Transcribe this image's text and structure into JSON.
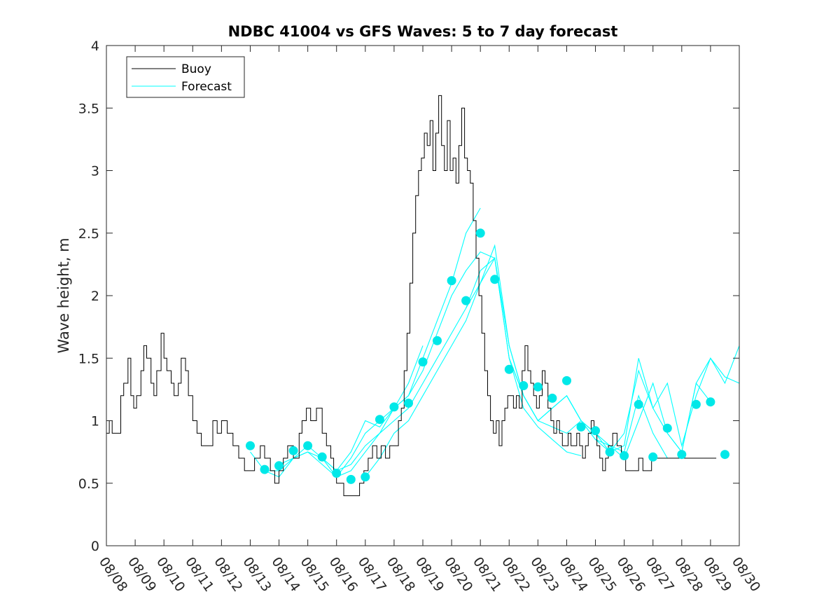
{
  "chart_data": {
    "type": "line",
    "title": "NDBC 41004 vs GFS Waves: 5 to 7 day forecast",
    "xlabel": "",
    "ylabel": "Wave height, m",
    "xlim": [
      0,
      22
    ],
    "ylim": [
      0,
      4
    ],
    "yticks": [
      0,
      0.5,
      1,
      1.5,
      2,
      2.5,
      3,
      3.5,
      4
    ],
    "ytick_labels": [
      "0",
      "0.5",
      "1",
      "1.5",
      "2",
      "2.5",
      "3",
      "3.5",
      "4"
    ],
    "xticks": [
      0,
      1,
      2,
      3,
      4,
      5,
      6,
      7,
      8,
      9,
      10,
      11,
      12,
      13,
      14,
      15,
      16,
      17,
      18,
      19,
      20,
      21,
      22
    ],
    "xtick_labels": [
      "08/08",
      "08/09",
      "08/10",
      "08/11",
      "08/12",
      "08/13",
      "08/14",
      "08/15",
      "08/16",
      "08/17",
      "08/18",
      "08/19",
      "08/20",
      "08/21",
      "08/22",
      "08/23",
      "08/24",
      "08/25",
      "08/26",
      "08/27",
      "08/28",
      "08/29",
      "08/30"
    ],
    "legend": {
      "placement": "top-left",
      "entries": [
        "Buoy",
        "Forecast"
      ]
    },
    "colors": {
      "buoy": "#000000",
      "forecast": "#00ffff",
      "markers": "#00e8e8"
    },
    "series": [
      {
        "name": "Buoy",
        "x": [
          0,
          0.1,
          0.2,
          0.35,
          0.5,
          0.6,
          0.75,
          0.85,
          0.95,
          1.05,
          1.2,
          1.3,
          1.4,
          1.55,
          1.65,
          1.75,
          1.9,
          2.0,
          2.1,
          2.25,
          2.35,
          2.5,
          2.6,
          2.75,
          2.85,
          3.0,
          3.15,
          3.3,
          3.5,
          3.7,
          3.85,
          4.0,
          4.2,
          4.4,
          4.6,
          4.8,
          5.0,
          5.15,
          5.35,
          5.5,
          5.7,
          5.85,
          6.0,
          6.15,
          6.3,
          6.5,
          6.7,
          6.8,
          6.95,
          7.1,
          7.3,
          7.5,
          7.65,
          7.8,
          7.9,
          8.0,
          8.1,
          8.25,
          8.4,
          8.6,
          8.8,
          8.95,
          9.1,
          9.25,
          9.4,
          9.55,
          9.7,
          9.85,
          10.0,
          10.15,
          10.25,
          10.35,
          10.45,
          10.55,
          10.65,
          10.75,
          10.85,
          10.95,
          11.05,
          11.15,
          11.25,
          11.35,
          11.45,
          11.55,
          11.65,
          11.75,
          11.85,
          11.95,
          12.05,
          12.15,
          12.25,
          12.35,
          12.45,
          12.55,
          12.65,
          12.75,
          12.85,
          12.95,
          13.05,
          13.15,
          13.25,
          13.35,
          13.45,
          13.55,
          13.65,
          13.75,
          13.85,
          13.95,
          14.05,
          14.15,
          14.25,
          14.35,
          14.45,
          14.55,
          14.65,
          14.75,
          14.85,
          14.95,
          15.05,
          15.15,
          15.25,
          15.35,
          15.45,
          15.55,
          15.65,
          15.75,
          15.85,
          15.95,
          16.05,
          16.15,
          16.25,
          16.35,
          16.45,
          16.55,
          16.65,
          16.75,
          16.85,
          16.95,
          17.05,
          17.15,
          17.25,
          17.35,
          17.45,
          17.6,
          17.75,
          17.9,
          18.05,
          18.2,
          18.35,
          18.5,
          18.65,
          18.8,
          18.95,
          19.1,
          19.25,
          19.4,
          19.55,
          19.7,
          19.85,
          20.0,
          20.15,
          20.3,
          20.5,
          20.7,
          20.9,
          21.0,
          21.2
        ],
        "values": [
          0.9,
          1.0,
          0.9,
          0.9,
          1.2,
          1.3,
          1.5,
          1.2,
          1.1,
          1.2,
          1.4,
          1.6,
          1.5,
          1.3,
          1.2,
          1.4,
          1.7,
          1.5,
          1.4,
          1.3,
          1.2,
          1.3,
          1.5,
          1.4,
          1.2,
          1.0,
          0.9,
          0.8,
          0.8,
          1.0,
          0.9,
          1.0,
          0.9,
          0.8,
          0.7,
          0.6,
          0.6,
          0.7,
          0.8,
          0.7,
          0.6,
          0.5,
          0.6,
          0.7,
          0.8,
          0.7,
          0.9,
          1.0,
          1.1,
          1.0,
          1.1,
          0.9,
          0.8,
          0.7,
          0.6,
          0.5,
          0.5,
          0.4,
          0.4,
          0.4,
          0.5,
          0.6,
          0.7,
          0.8,
          0.7,
          0.8,
          0.7,
          0.8,
          0.8,
          1.0,
          1.1,
          1.4,
          1.7,
          2.1,
          2.5,
          2.8,
          3.0,
          3.1,
          3.3,
          3.2,
          3.4,
          3.0,
          3.3,
          3.6,
          3.2,
          3.0,
          3.4,
          3.0,
          3.1,
          2.9,
          3.2,
          3.5,
          3.1,
          3.0,
          2.9,
          2.6,
          2.3,
          2.0,
          1.7,
          1.4,
          1.2,
          1.0,
          0.9,
          1.0,
          0.8,
          1.0,
          1.1,
          1.2,
          1.2,
          1.1,
          1.2,
          1.1,
          1.4,
          1.6,
          1.4,
          1.3,
          1.2,
          1.1,
          1.2,
          1.4,
          1.3,
          1.1,
          1.0,
          0.9,
          1.0,
          0.9,
          0.8,
          0.8,
          0.9,
          0.8,
          0.8,
          0.9,
          0.8,
          0.7,
          0.8,
          0.9,
          1.0,
          0.9,
          0.8,
          0.7,
          0.6,
          0.7,
          0.8,
          0.9,
          0.8,
          0.7,
          0.6,
          0.6,
          0.6,
          0.7,
          0.6,
          0.6,
          0.7,
          0.7,
          0.7,
          0.7,
          0.7,
          0.7,
          0.7,
          0.7,
          0.7,
          0.7,
          0.7,
          0.7,
          0.7,
          0.7,
          0.7
        ]
      }
    ],
    "forecast_runs": [
      {
        "x": [
          5.0,
          5.5,
          6.0,
          6.5,
          7.0,
          7.5,
          8.0,
          8.5,
          9.0,
          9.5,
          10.0,
          10.5,
          11.0
        ],
        "values": [
          0.75,
          0.6,
          0.6,
          0.7,
          0.8,
          0.7,
          0.6,
          0.65,
          0.8,
          0.9,
          1.1,
          1.3,
          1.6
        ]
      },
      {
        "x": [
          5.5,
          6.0,
          6.5,
          7.0,
          7.5,
          8.0,
          8.5,
          9.0,
          9.5,
          10.0,
          10.5,
          11.0,
          11.5,
          12.0,
          12.5,
          13.0
        ],
        "values": [
          0.6,
          0.55,
          0.7,
          0.75,
          0.65,
          0.55,
          0.7,
          0.9,
          1.0,
          1.1,
          1.2,
          1.5,
          1.8,
          2.1,
          2.5,
          2.7
        ]
      },
      {
        "x": [
          6.0,
          6.5,
          7.0,
          7.5,
          8.0,
          8.5,
          9.0,
          9.5,
          10.0,
          10.5,
          11.0,
          11.5,
          12.0,
          12.5,
          13.0,
          13.5,
          14.0,
          14.5
        ],
        "values": [
          0.65,
          0.7,
          0.75,
          0.7,
          0.6,
          0.75,
          1.0,
          0.95,
          1.1,
          1.2,
          1.4,
          1.7,
          2.0,
          2.2,
          2.35,
          2.3,
          1.6,
          1.2
        ]
      },
      {
        "x": [
          7.5,
          8.0,
          8.5,
          9.0,
          9.5,
          10.0,
          10.5,
          11.0,
          11.5,
          12.0,
          12.5,
          13.0,
          13.5,
          14.0,
          14.5,
          15.0,
          15.5,
          16.0,
          16.5
        ],
        "values": [
          0.7,
          0.55,
          0.6,
          0.75,
          0.9,
          1.0,
          1.1,
          1.3,
          1.5,
          1.7,
          1.9,
          2.2,
          2.3,
          1.5,
          1.1,
          0.95,
          0.85,
          0.75,
          0.72
        ]
      },
      {
        "x": [
          9.0,
          9.5,
          10.0,
          10.5,
          11.0,
          11.5,
          12.0,
          12.5,
          13.0,
          13.5,
          14.0,
          14.5,
          15.0,
          15.5,
          16.0,
          16.5,
          17.0,
          17.5
        ],
        "values": [
          0.55,
          0.7,
          0.9,
          1.0,
          1.2,
          1.4,
          1.6,
          1.8,
          2.1,
          2.3,
          1.5,
          1.2,
          1.0,
          0.95,
          0.9,
          1.0,
          0.85,
          0.75
        ]
      },
      {
        "x": [
          12.5,
          13.0,
          13.5,
          14.0,
          14.5,
          15.0,
          15.5,
          16.0,
          16.5,
          17.0,
          17.5,
          18.0,
          18.5,
          19.0,
          19.5
        ],
        "values": [
          1.9,
          2.1,
          2.4,
          1.6,
          1.2,
          1.0,
          1.1,
          1.2,
          1.0,
          0.9,
          0.8,
          0.75,
          1.2,
          0.9,
          0.7
        ]
      },
      {
        "x": [
          14.0,
          14.5,
          15.0,
          15.5,
          16.0,
          16.5,
          17.0,
          17.5,
          18.0,
          18.5,
          19.0,
          19.5,
          20.0,
          20.5,
          21.0
        ],
        "values": [
          1.5,
          1.2,
          1.0,
          1.1,
          1.2,
          1.0,
          0.85,
          0.8,
          0.7,
          1.0,
          1.3,
          0.9,
          0.75,
          1.3,
          1.15
        ]
      },
      {
        "x": [
          16.0,
          16.5,
          17.0,
          17.5,
          18.0,
          18.5,
          19.0,
          19.5,
          20.0,
          20.5,
          21.0,
          21.5,
          22.0
        ],
        "values": [
          1.2,
          1.0,
          0.9,
          0.75,
          0.8,
          1.5,
          1.1,
          1.3,
          0.8,
          1.2,
          1.5,
          1.3,
          1.6
        ]
      },
      {
        "x": [
          17.5,
          18.0,
          18.5,
          19.0,
          19.5,
          20.0,
          20.5,
          21.0,
          21.5,
          22.0
        ],
        "values": [
          0.75,
          0.9,
          1.4,
          1.1,
          0.9,
          0.75,
          1.3,
          1.5,
          1.35,
          1.3
        ]
      }
    ],
    "forecast_points": {
      "x": [
        5.0,
        5.5,
        6.0,
        6.5,
        7.0,
        7.5,
        8.0,
        8.5,
        9.0,
        9.5,
        10.0,
        10.5,
        11.0,
        11.5,
        12.0,
        12.5,
        13.0,
        13.5,
        14.0,
        14.5,
        15.0,
        15.5,
        16.0,
        16.5,
        17.0,
        17.5,
        18.0,
        18.5,
        19.0,
        19.5,
        20.0,
        20.5,
        21.0,
        21.5
      ],
      "values": [
        0.8,
        0.61,
        0.64,
        0.76,
        0.8,
        0.71,
        0.58,
        0.53,
        0.55,
        1.01,
        1.11,
        1.14,
        1.47,
        1.64,
        2.12,
        1.96,
        2.5,
        2.13,
        1.41,
        1.28,
        1.27,
        1.18,
        1.32,
        0.95,
        0.92,
        0.75,
        0.72,
        1.13,
        0.71,
        0.94,
        0.73,
        1.13,
        1.15,
        0.73
      ]
    }
  }
}
